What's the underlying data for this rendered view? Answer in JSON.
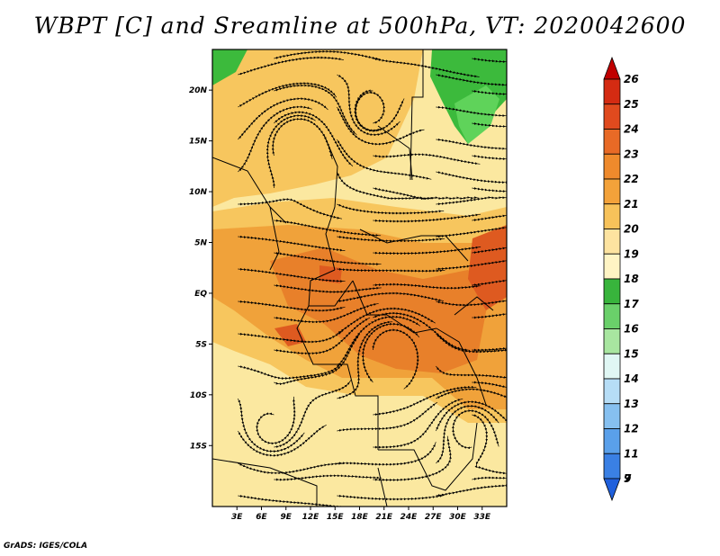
{
  "title": "WBPT [C] and Sreamline at 500hPa, VT: 2020042600",
  "credit": "GrADS: IGES/COLA",
  "map": {
    "lat_range": [
      -21,
      24
    ],
    "lon_range": [
      0,
      36
    ],
    "lat_ticks": [
      "20N",
      "15N",
      "10N",
      "5N",
      "EQ",
      "5S",
      "10S",
      "15S"
    ],
    "lon_ticks": [
      "3E",
      "6E",
      "9E",
      "12E",
      "15E",
      "18E",
      "21E",
      "24E",
      "27E",
      "30E",
      "33E"
    ],
    "fill_colors": {
      "c16": "#5fd35a",
      "c17": "#3cba3c",
      "c19": "#fbe8a0",
      "c20": "#f7c65e",
      "c21": "#f0a23a",
      "c22": "#e8802a",
      "c23": "#de5a20"
    }
  },
  "colorbar": {
    "labels": [
      "26",
      "25",
      "24",
      "23",
      "22",
      "21",
      "20",
      "19",
      "18",
      "17",
      "16",
      "15",
      "14",
      "13",
      "12",
      "11",
      "9",
      "7"
    ],
    "colors": [
      "#c00000",
      "#d42b12",
      "#e04a1e",
      "#e86a26",
      "#ef8a2c",
      "#f3a23a",
      "#f7c25a",
      "#fde3a0",
      "#fff4c4",
      "#38b43c",
      "#6ad06a",
      "#a8e6a0",
      "#e0f7f4",
      "#b6ddf6",
      "#86c0f0",
      "#5aa0ea",
      "#3a80e4",
      "#2060dc"
    ]
  }
}
